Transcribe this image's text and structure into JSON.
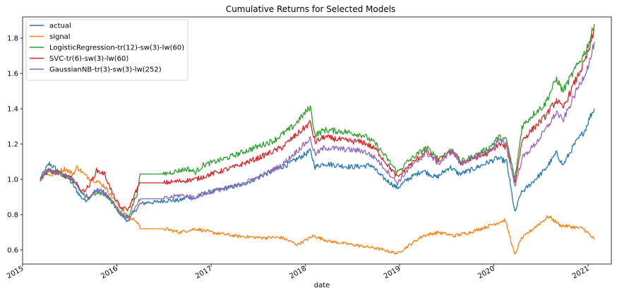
{
  "chart_data": {
    "type": "line",
    "title": "Cumulative Returns for Selected Models",
    "xlabel": "date",
    "ylabel": "",
    "xlim": [
      "2015-01-01",
      "2021-04-01"
    ],
    "ylim": [
      0.52,
      1.92
    ],
    "x_ticks": [
      "2015",
      "2016",
      "2017",
      "2018",
      "2019",
      "2020",
      "2021"
    ],
    "y_ticks": [
      0.6,
      0.8,
      1.0,
      1.2,
      1.4,
      1.6,
      1.8
    ],
    "grid": false,
    "legend_position": "top-left",
    "series": [
      {
        "name": "actual",
        "color": "#1f77b4",
        "points": [
          [
            "2015-03-10",
            1.0
          ],
          [
            "2015-04-01",
            1.06
          ],
          [
            "2015-04-15",
            1.09
          ],
          [
            "2015-05-01",
            1.07
          ],
          [
            "2015-06-01",
            1.03
          ],
          [
            "2015-07-01",
            1.0
          ],
          [
            "2015-08-15",
            0.9
          ],
          [
            "2015-09-01",
            0.88
          ],
          [
            "2015-10-01",
            0.92
          ],
          [
            "2015-11-01",
            0.94
          ],
          [
            "2015-12-01",
            0.9
          ],
          [
            "2016-01-10",
            0.82
          ],
          [
            "2016-02-10",
            0.76
          ],
          [
            "2016-03-01",
            0.8
          ],
          [
            "2016-04-01",
            0.86
          ],
          [
            "2016-05-01",
            0.87
          ],
          [
            "2016-06-01",
            0.87
          ],
          [
            "2016-07-01",
            0.88
          ],
          [
            "2016-08-01",
            0.88
          ],
          [
            "2016-09-01",
            0.88
          ],
          [
            "2016-10-01",
            0.9
          ],
          [
            "2016-11-01",
            0.89
          ],
          [
            "2016-12-01",
            0.92
          ],
          [
            "2017-01-01",
            0.93
          ],
          [
            "2017-03-01",
            0.95
          ],
          [
            "2017-05-01",
            0.97
          ],
          [
            "2017-07-01",
            1.01
          ],
          [
            "2017-09-01",
            1.05
          ],
          [
            "2017-11-01",
            1.09
          ],
          [
            "2018-01-20",
            1.16
          ],
          [
            "2018-02-08",
            1.07
          ],
          [
            "2018-03-15",
            1.09
          ],
          [
            "2018-05-01",
            1.08
          ],
          [
            "2018-07-01",
            1.07
          ],
          [
            "2018-09-15",
            1.08
          ],
          [
            "2018-10-20",
            1.02
          ],
          [
            "2018-12-24",
            0.95
          ],
          [
            "2019-02-01",
            1.0
          ],
          [
            "2019-04-01",
            1.05
          ],
          [
            "2019-05-25",
            1.01
          ],
          [
            "2019-07-15",
            1.07
          ],
          [
            "2019-08-20",
            1.03
          ],
          [
            "2019-10-01",
            1.05
          ],
          [
            "2019-12-01",
            1.09
          ],
          [
            "2020-01-15",
            1.12
          ],
          [
            "2020-02-20",
            1.1
          ],
          [
            "2020-03-23",
            0.81
          ],
          [
            "2020-04-15",
            0.92
          ],
          [
            "2020-06-10",
            1.0
          ],
          [
            "2020-07-15",
            1.05
          ],
          [
            "2020-09-01",
            1.15
          ],
          [
            "2020-09-25",
            1.08
          ],
          [
            "2020-11-10",
            1.2
          ],
          [
            "2020-12-20",
            1.28
          ],
          [
            "2021-01-10",
            1.36
          ],
          [
            "2021-01-25",
            1.4
          ]
        ]
      },
      {
        "name": "signal",
        "color": "#ff7f0e",
        "points": [
          [
            "2015-03-10",
            1.0
          ],
          [
            "2015-04-01",
            1.05
          ],
          [
            "2015-04-15",
            1.02
          ],
          [
            "2015-05-15",
            1.04
          ],
          [
            "2015-06-15",
            1.06
          ],
          [
            "2015-07-15",
            1.03
          ],
          [
            "2015-08-01",
            1.07
          ],
          [
            "2015-09-01",
            1.02
          ],
          [
            "2015-10-15",
            0.99
          ],
          [
            "2015-11-15",
            0.96
          ],
          [
            "2015-12-15",
            0.9
          ],
          [
            "2016-01-15",
            0.84
          ],
          [
            "2016-02-15",
            0.78
          ],
          [
            "2016-03-15",
            0.77
          ],
          [
            "2016-04-01",
            0.72
          ],
          [
            "2016-07-01",
            0.72
          ],
          [
            "2016-09-01",
            0.7
          ],
          [
            "2016-11-01",
            0.72
          ],
          [
            "2017-01-01",
            0.7
          ],
          [
            "2017-04-01",
            0.68
          ],
          [
            "2017-07-01",
            0.67
          ],
          [
            "2017-10-01",
            0.67
          ],
          [
            "2017-12-01",
            0.63
          ],
          [
            "2018-02-01",
            0.68
          ],
          [
            "2018-04-01",
            0.65
          ],
          [
            "2018-07-01",
            0.63
          ],
          [
            "2018-10-01",
            0.61
          ],
          [
            "2018-12-24",
            0.58
          ],
          [
            "2019-02-01",
            0.62
          ],
          [
            "2019-04-01",
            0.68
          ],
          [
            "2019-06-01",
            0.7
          ],
          [
            "2019-08-01",
            0.68
          ],
          [
            "2019-10-01",
            0.7
          ],
          [
            "2019-12-01",
            0.73
          ],
          [
            "2020-02-15",
            0.77
          ],
          [
            "2020-03-23",
            0.57
          ],
          [
            "2020-04-15",
            0.66
          ],
          [
            "2020-06-01",
            0.72
          ],
          [
            "2020-08-01",
            0.79
          ],
          [
            "2020-09-15",
            0.74
          ],
          [
            "2020-11-01",
            0.73
          ],
          [
            "2020-12-15",
            0.72
          ],
          [
            "2021-01-10",
            0.68
          ],
          [
            "2021-01-25",
            0.66
          ]
        ]
      },
      {
        "name": "LogisticRegression-tr(12)-sw(3)-lw(60)",
        "color": "#2ca02c",
        "points": [
          [
            "2015-03-10",
            1.0
          ],
          [
            "2015-04-10",
            1.05
          ],
          [
            "2015-06-01",
            1.03
          ],
          [
            "2015-07-15",
            1.0
          ],
          [
            "2015-08-20",
            0.92
          ],
          [
            "2015-09-15",
            0.89
          ],
          [
            "2015-10-15",
            0.93
          ],
          [
            "2015-11-15",
            0.91
          ],
          [
            "2015-12-15",
            0.87
          ],
          [
            "2016-01-15",
            0.8
          ],
          [
            "2016-02-15",
            0.79
          ],
          [
            "2016-03-20",
            0.92
          ],
          [
            "2016-04-01",
            1.03
          ],
          [
            "2016-07-01",
            1.03
          ],
          [
            "2016-08-01",
            1.04
          ],
          [
            "2016-10-01",
            1.06
          ],
          [
            "2016-11-01",
            1.04
          ],
          [
            "2016-12-01",
            1.08
          ],
          [
            "2017-03-01",
            1.12
          ],
          [
            "2017-06-01",
            1.17
          ],
          [
            "2017-09-01",
            1.22
          ],
          [
            "2017-11-15",
            1.3
          ],
          [
            "2018-01-20",
            1.41
          ],
          [
            "2018-02-08",
            1.25
          ],
          [
            "2018-03-15",
            1.28
          ],
          [
            "2018-06-01",
            1.27
          ],
          [
            "2018-08-15",
            1.25
          ],
          [
            "2018-10-01",
            1.2
          ],
          [
            "2018-12-24",
            1.04
          ],
          [
            "2019-02-01",
            1.1
          ],
          [
            "2019-04-15",
            1.18
          ],
          [
            "2019-06-01",
            1.12
          ],
          [
            "2019-07-25",
            1.17
          ],
          [
            "2019-08-25",
            1.1
          ],
          [
            "2019-10-15",
            1.13
          ],
          [
            "2019-12-15",
            1.18
          ],
          [
            "2020-01-20",
            1.24
          ],
          [
            "2020-02-20",
            1.22
          ],
          [
            "2020-03-23",
            1.0
          ],
          [
            "2020-04-20",
            1.3
          ],
          [
            "2020-06-10",
            1.38
          ],
          [
            "2020-07-15",
            1.42
          ],
          [
            "2020-09-01",
            1.57
          ],
          [
            "2020-09-25",
            1.5
          ],
          [
            "2020-11-10",
            1.62
          ],
          [
            "2020-12-20",
            1.72
          ],
          [
            "2021-01-10",
            1.8
          ],
          [
            "2021-01-25",
            1.88
          ]
        ]
      },
      {
        "name": "SVC-tr(6)-sw(3)-lw(60)",
        "color": "#d62728",
        "points": [
          [
            "2015-03-10",
            1.0
          ],
          [
            "2015-04-10",
            1.05
          ],
          [
            "2015-06-01",
            1.03
          ],
          [
            "2015-07-15",
            1.0
          ],
          [
            "2015-08-20",
            0.93
          ],
          [
            "2015-09-15",
            0.96
          ],
          [
            "2015-10-15",
            1.05
          ],
          [
            "2015-11-15",
            1.03
          ],
          [
            "2015-12-15",
            0.92
          ],
          [
            "2016-01-15",
            0.84
          ],
          [
            "2016-02-15",
            0.83
          ],
          [
            "2016-03-15",
            0.93
          ],
          [
            "2016-04-01",
            0.98
          ],
          [
            "2016-07-01",
            0.98
          ],
          [
            "2016-09-01",
            0.99
          ],
          [
            "2016-11-01",
            1.0
          ],
          [
            "2017-01-01",
            1.03
          ],
          [
            "2017-04-01",
            1.07
          ],
          [
            "2017-07-01",
            1.12
          ],
          [
            "2017-10-01",
            1.18
          ],
          [
            "2018-01-20",
            1.32
          ],
          [
            "2018-02-08",
            1.21
          ],
          [
            "2018-03-15",
            1.24
          ],
          [
            "2018-06-01",
            1.22
          ],
          [
            "2018-08-15",
            1.21
          ],
          [
            "2018-10-01",
            1.17
          ],
          [
            "2018-12-24",
            1.01
          ],
          [
            "2019-02-01",
            1.07
          ],
          [
            "2019-04-15",
            1.16
          ],
          [
            "2019-06-01",
            1.1
          ],
          [
            "2019-07-25",
            1.16
          ],
          [
            "2019-08-25",
            1.09
          ],
          [
            "2019-10-15",
            1.12
          ],
          [
            "2019-12-15",
            1.15
          ],
          [
            "2020-01-20",
            1.2
          ],
          [
            "2020-02-20",
            1.18
          ],
          [
            "2020-03-23",
            0.98
          ],
          [
            "2020-04-20",
            1.22
          ],
          [
            "2020-06-10",
            1.3
          ],
          [
            "2020-07-15",
            1.35
          ],
          [
            "2020-09-01",
            1.45
          ],
          [
            "2020-09-25",
            1.4
          ],
          [
            "2020-11-10",
            1.55
          ],
          [
            "2020-12-20",
            1.67
          ],
          [
            "2021-01-10",
            1.76
          ],
          [
            "2021-01-25",
            1.85
          ]
        ]
      },
      {
        "name": "GaussianNB-tr(3)-sw(3)-lw(252)",
        "color": "#9467bd",
        "points": [
          [
            "2015-03-10",
            1.0
          ],
          [
            "2015-04-10",
            1.05
          ],
          [
            "2015-06-01",
            1.03
          ],
          [
            "2015-07-15",
            1.0
          ],
          [
            "2015-08-20",
            0.92
          ],
          [
            "2015-09-15",
            0.9
          ],
          [
            "2015-10-15",
            0.94
          ],
          [
            "2015-11-15",
            0.92
          ],
          [
            "2015-12-15",
            0.88
          ],
          [
            "2016-01-15",
            0.8
          ],
          [
            "2016-02-15",
            0.78
          ],
          [
            "2016-03-15",
            0.84
          ],
          [
            "2016-04-01",
            0.89
          ],
          [
            "2016-07-01",
            0.89
          ],
          [
            "2016-09-01",
            0.91
          ],
          [
            "2016-11-01",
            0.9
          ],
          [
            "2017-01-01",
            0.93
          ],
          [
            "2017-04-01",
            0.96
          ],
          [
            "2017-07-01",
            1.01
          ],
          [
            "2017-10-01",
            1.08
          ],
          [
            "2018-01-20",
            1.23
          ],
          [
            "2018-02-08",
            1.14
          ],
          [
            "2018-03-15",
            1.18
          ],
          [
            "2018-06-01",
            1.17
          ],
          [
            "2018-08-15",
            1.16
          ],
          [
            "2018-10-01",
            1.12
          ],
          [
            "2018-12-24",
            0.98
          ],
          [
            "2019-02-01",
            1.05
          ],
          [
            "2019-04-15",
            1.15
          ],
          [
            "2019-06-01",
            1.09
          ],
          [
            "2019-07-25",
            1.16
          ],
          [
            "2019-08-25",
            1.09
          ],
          [
            "2019-10-15",
            1.12
          ],
          [
            "2019-12-15",
            1.16
          ],
          [
            "2020-01-20",
            1.22
          ],
          [
            "2020-02-20",
            1.2
          ],
          [
            "2020-03-23",
            0.96
          ],
          [
            "2020-04-20",
            1.12
          ],
          [
            "2020-06-10",
            1.2
          ],
          [
            "2020-07-15",
            1.27
          ],
          [
            "2020-09-01",
            1.38
          ],
          [
            "2020-09-25",
            1.33
          ],
          [
            "2020-11-10",
            1.48
          ],
          [
            "2020-12-20",
            1.6
          ],
          [
            "2021-01-10",
            1.68
          ],
          [
            "2021-01-25",
            1.78
          ]
        ]
      }
    ]
  }
}
